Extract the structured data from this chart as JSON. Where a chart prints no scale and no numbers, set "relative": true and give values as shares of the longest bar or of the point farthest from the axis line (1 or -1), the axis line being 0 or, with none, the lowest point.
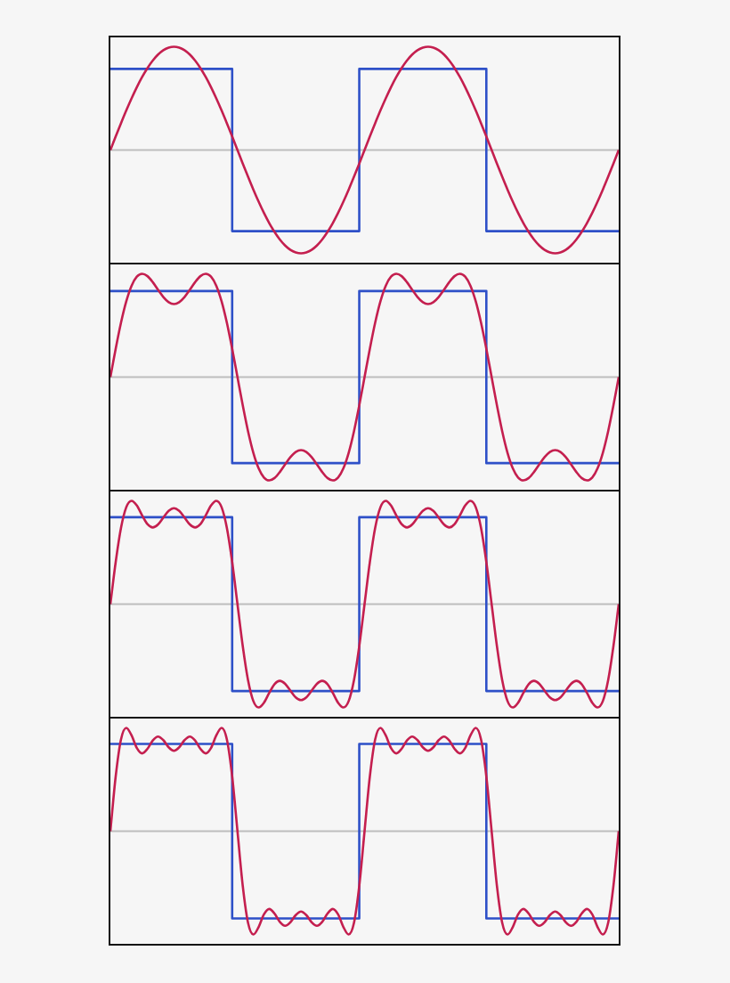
{
  "chart_data": [
    {
      "type": "line",
      "relative": true,
      "categories": [
        null,
        null,
        null,
        null,
        null,
        null,
        null,
        null,
        null,
        null,
        null,
        null,
        null,
        null,
        null,
        null,
        null,
        null,
        null,
        null,
        null,
        null,
        null,
        null,
        null,
        null,
        null,
        null,
        null,
        null,
        null,
        null,
        null,
        null,
        null,
        null,
        null,
        null,
        null,
        null,
        null,
        null,
        null,
        null,
        null,
        null,
        null,
        null,
        null,
        null,
        null,
        null,
        null,
        null,
        null,
        null,
        null,
        null,
        null,
        null,
        null,
        null,
        null,
        null,
        null,
        null,
        null,
        null,
        null,
        null,
        null,
        null,
        null,
        null,
        null,
        null,
        null,
        null,
        null,
        null,
        null,
        null,
        null,
        null,
        null,
        null,
        null,
        null,
        null,
        null,
        null,
        null,
        null,
        null,
        null,
        null,
        null
      ],
      "ref_lines": [
        {
          "axis": "y",
          "value": 0,
          "color": "#bdbdbd"
        }
      ],
      "series": [
        {
          "type": "step",
          "color": "#2e50c8",
          "values": [
            0.785,
            0.785,
            0.785,
            0.785,
            0.785,
            0.785,
            0.785,
            0.785,
            0.785,
            0.785,
            0.785,
            0.785,
            0.785,
            0.785,
            0.785,
            0.785,
            0.785,
            0.785,
            0.785,
            0.785,
            0.785,
            0.785,
            0.785,
            0.785,
            -0.785,
            -0.785,
            -0.785,
            -0.785,
            -0.785,
            -0.785,
            -0.785,
            -0.785,
            -0.785,
            -0.785,
            -0.785,
            -0.785,
            -0.785,
            -0.785,
            -0.785,
            -0.785,
            -0.785,
            -0.785,
            -0.785,
            -0.785,
            -0.785,
            -0.785,
            -0.785,
            -0.785,
            0.785,
            0.785,
            0.785,
            0.785,
            0.785,
            0.785,
            0.785,
            0.785,
            0.785,
            0.785,
            0.785,
            0.785,
            0.785,
            0.785,
            0.785,
            0.785,
            0.785,
            0.785,
            0.785,
            0.785,
            0.785,
            0.785,
            0.785,
            0.785,
            -0.785,
            -0.785,
            -0.785,
            -0.785,
            -0.785,
            -0.785,
            -0.785,
            -0.785,
            -0.785,
            -0.785,
            -0.785,
            -0.785,
            -0.785,
            -0.785,
            -0.785,
            -0.785,
            -0.785,
            -0.785,
            -0.785,
            -0.785,
            -0.785,
            -0.785,
            -0.785,
            -0.785,
            -0.785
          ]
        },
        {
          "type": "line",
          "color": "#c41f4f",
          "values": [
            0,
            0.131,
            0.259,
            0.383,
            0.5,
            0.609,
            0.707,
            0.793,
            0.866,
            0.924,
            0.966,
            0.991,
            1,
            0.991,
            0.966,
            0.924,
            0.866,
            0.793,
            0.707,
            0.609,
            0.5,
            0.383,
            0.259,
            0.131,
            0,
            -0.131,
            -0.259,
            -0.383,
            -0.5,
            -0.609,
            -0.707,
            -0.793,
            -0.866,
            -0.924,
            -0.966,
            -0.991,
            -1,
            -0.991,
            -0.966,
            -0.924,
            -0.866,
            -0.793,
            -0.707,
            -0.609,
            -0.5,
            -0.383,
            -0.259,
            -0.131,
            0,
            0.131,
            0.259,
            0.383,
            0.5,
            0.609,
            0.707,
            0.793,
            0.866,
            0.924,
            0.966,
            0.991,
            1,
            0.991,
            0.966,
            0.924,
            0.866,
            0.793,
            0.707,
            0.609,
            0.5,
            0.383,
            0.259,
            0.131,
            0,
            -0.131,
            -0.259,
            -0.383,
            -0.5,
            -0.609,
            -0.707,
            -0.793,
            -0.866,
            -0.924,
            -0.966,
            -0.991,
            -1,
            -0.991,
            -0.966,
            -0.924,
            -0.866,
            -0.793,
            -0.707,
            -0.609,
            -0.5,
            -0.383,
            -0.259,
            -0.131,
            0
          ]
        }
      ]
    },
    {
      "type": "line",
      "relative": true,
      "categories": [
        null,
        null,
        null,
        null,
        null,
        null,
        null,
        null,
        null,
        null,
        null,
        null,
        null,
        null,
        null,
        null,
        null,
        null,
        null,
        null,
        null,
        null,
        null,
        null,
        null,
        null,
        null,
        null,
        null,
        null,
        null,
        null,
        null,
        null,
        null,
        null,
        null,
        null,
        null,
        null,
        null,
        null,
        null,
        null,
        null,
        null,
        null,
        null,
        null,
        null,
        null,
        null,
        null,
        null,
        null,
        null,
        null,
        null,
        null,
        null,
        null,
        null,
        null,
        null,
        null,
        null,
        null,
        null,
        null,
        null,
        null,
        null,
        null,
        null,
        null,
        null,
        null,
        null,
        null,
        null,
        null,
        null,
        null,
        null,
        null,
        null,
        null,
        null,
        null,
        null,
        null,
        null,
        null,
        null,
        null,
        null,
        null
      ],
      "ref_lines": [
        {
          "axis": "y",
          "value": 0,
          "color": "#bdbdbd"
        }
      ],
      "series": [
        {
          "type": "step",
          "color": "#2e50c8",
          "values": [
            0.833,
            0.833,
            0.833,
            0.833,
            0.833,
            0.833,
            0.833,
            0.833,
            0.833,
            0.833,
            0.833,
            0.833,
            0.833,
            0.833,
            0.833,
            0.833,
            0.833,
            0.833,
            0.833,
            0.833,
            0.833,
            0.833,
            0.833,
            0.833,
            -0.833,
            -0.833,
            -0.833,
            -0.833,
            -0.833,
            -0.833,
            -0.833,
            -0.833,
            -0.833,
            -0.833,
            -0.833,
            -0.833,
            -0.833,
            -0.833,
            -0.833,
            -0.833,
            -0.833,
            -0.833,
            -0.833,
            -0.833,
            -0.833,
            -0.833,
            -0.833,
            -0.833,
            0.833,
            0.833,
            0.833,
            0.833,
            0.833,
            0.833,
            0.833,
            0.833,
            0.833,
            0.833,
            0.833,
            0.833,
            0.833,
            0.833,
            0.833,
            0.833,
            0.833,
            0.833,
            0.833,
            0.833,
            0.833,
            0.833,
            0.833,
            0.833,
            -0.833,
            -0.833,
            -0.833,
            -0.833,
            -0.833,
            -0.833,
            -0.833,
            -0.833,
            -0.833,
            -0.833,
            -0.833,
            -0.833,
            -0.833,
            -0.833,
            -0.833,
            -0.833,
            -0.833,
            -0.833,
            -0.833,
            -0.833,
            -0.833,
            -0.833,
            -0.833,
            -0.833,
            -0.833
          ]
        },
        {
          "type": "line",
          "color": "#c41f4f",
          "values": [
            0,
            0.274,
            0.525,
            0.733,
            0.884,
            0.972,
            1,
            0.977,
            0.919,
            0.845,
            0.775,
            0.725,
            0.707,
            0.725,
            0.775,
            0.845,
            0.919,
            0.977,
            1,
            0.972,
            0.884,
            0.733,
            0.525,
            0.274,
            0,
            -0.274,
            -0.525,
            -0.733,
            -0.884,
            -0.972,
            -1,
            -0.977,
            -0.919,
            -0.845,
            -0.775,
            -0.725,
            -0.707,
            -0.725,
            -0.775,
            -0.845,
            -0.919,
            -0.977,
            -1,
            -0.972,
            -0.884,
            -0.733,
            -0.525,
            -0.274,
            0,
            0.274,
            0.525,
            0.733,
            0.884,
            0.972,
            1,
            0.977,
            0.919,
            0.845,
            0.775,
            0.725,
            0.707,
            0.725,
            0.775,
            0.845,
            0.919,
            0.977,
            1,
            0.972,
            0.884,
            0.733,
            0.525,
            0.274,
            0,
            -0.274,
            -0.525,
            -0.733,
            -0.884,
            -0.972,
            -1,
            -0.977,
            -0.919,
            -0.845,
            -0.775,
            -0.725,
            -0.707,
            -0.725,
            -0.775,
            -0.845,
            -0.919,
            -0.977,
            -1,
            -0.972,
            -0.884,
            -0.733,
            -0.525,
            -0.274,
            0
          ]
        }
      ]
    },
    {
      "type": "line",
      "relative": true,
      "categories": [
        null,
        null,
        null,
        null,
        null,
        null,
        null,
        null,
        null,
        null,
        null,
        null,
        null,
        null,
        null,
        null,
        null,
        null,
        null,
        null,
        null,
        null,
        null,
        null,
        null,
        null,
        null,
        null,
        null,
        null,
        null,
        null,
        null,
        null,
        null,
        null,
        null,
        null,
        null,
        null,
        null,
        null,
        null,
        null,
        null,
        null,
        null,
        null,
        null,
        null,
        null,
        null,
        null,
        null,
        null,
        null,
        null,
        null,
        null,
        null,
        null,
        null,
        null,
        null,
        null,
        null,
        null,
        null,
        null,
        null,
        null,
        null,
        null,
        null,
        null,
        null,
        null,
        null,
        null,
        null,
        null,
        null,
        null,
        null,
        null,
        null,
        null,
        null,
        null,
        null,
        null,
        null,
        null,
        null,
        null,
        null,
        null
      ],
      "ref_lines": [
        {
          "axis": "y",
          "value": 0,
          "color": "#bdbdbd"
        }
      ],
      "series": [
        {
          "type": "step",
          "color": "#2e50c8",
          "values": [
            0.841,
            0.841,
            0.841,
            0.841,
            0.841,
            0.841,
            0.841,
            0.841,
            0.841,
            0.841,
            0.841,
            0.841,
            0.841,
            0.841,
            0.841,
            0.841,
            0.841,
            0.841,
            0.841,
            0.841,
            0.841,
            0.841,
            0.841,
            0.841,
            -0.841,
            -0.841,
            -0.841,
            -0.841,
            -0.841,
            -0.841,
            -0.841,
            -0.841,
            -0.841,
            -0.841,
            -0.841,
            -0.841,
            -0.841,
            -0.841,
            -0.841,
            -0.841,
            -0.841,
            -0.841,
            -0.841,
            -0.841,
            -0.841,
            -0.841,
            -0.841,
            -0.841,
            0.841,
            0.841,
            0.841,
            0.841,
            0.841,
            0.841,
            0.841,
            0.841,
            0.841,
            0.841,
            0.841,
            0.841,
            0.841,
            0.841,
            0.841,
            0.841,
            0.841,
            0.841,
            0.841,
            0.841,
            0.841,
            0.841,
            0.841,
            0.841,
            -0.841,
            -0.841,
            -0.841,
            -0.841,
            -0.841,
            -0.841,
            -0.841,
            -0.841,
            -0.841,
            -0.841,
            -0.841,
            -0.841,
            -0.841,
            -0.841,
            -0.841,
            -0.841,
            -0.841,
            -0.841,
            -0.841,
            -0.841,
            -0.841,
            -0.841,
            -0.841,
            -0.841,
            -0.841
          ]
        },
        {
          "type": "line",
          "color": "#c41f4f",
          "values": [
            0,
            0.407,
            0.737,
            0.938,
            1,
            0.954,
            0.859,
            0.774,
            0.742,
            0.771,
            0.838,
            0.902,
            0.929,
            0.902,
            0.838,
            0.771,
            0.742,
            0.774,
            0.859,
            0.954,
            1,
            0.938,
            0.737,
            0.407,
            0,
            -0.407,
            -0.737,
            -0.938,
            -1,
            -0.954,
            -0.859,
            -0.774,
            -0.742,
            -0.771,
            -0.838,
            -0.902,
            -0.929,
            -0.902,
            -0.838,
            -0.771,
            -0.742,
            -0.774,
            -0.859,
            -0.954,
            -1,
            -0.938,
            -0.737,
            -0.407,
            0,
            0.407,
            0.737,
            0.938,
            1,
            0.954,
            0.859,
            0.774,
            0.742,
            0.771,
            0.838,
            0.902,
            0.929,
            0.902,
            0.838,
            0.771,
            0.742,
            0.774,
            0.859,
            0.954,
            1,
            0.938,
            0.737,
            0.407,
            0,
            -0.407,
            -0.737,
            -0.938,
            -1,
            -0.954,
            -0.859,
            -0.774,
            -0.742,
            -0.771,
            -0.838,
            -0.902,
            -0.929,
            -0.902,
            -0.838,
            -0.771,
            -0.742,
            -0.774,
            -0.859,
            -0.954,
            -1,
            -0.938,
            -0.737,
            -0.407,
            0
          ]
        }
      ]
    },
    {
      "type": "line",
      "relative": true,
      "categories": [
        null,
        null,
        null,
        null,
        null,
        null,
        null,
        null,
        null,
        null,
        null,
        null,
        null,
        null,
        null,
        null,
        null,
        null,
        null,
        null,
        null,
        null,
        null,
        null,
        null,
        null,
        null,
        null,
        null,
        null,
        null,
        null,
        null,
        null,
        null,
        null,
        null,
        null,
        null,
        null,
        null,
        null,
        null,
        null,
        null,
        null,
        null,
        null,
        null,
        null,
        null,
        null,
        null,
        null,
        null,
        null,
        null,
        null,
        null,
        null,
        null,
        null,
        null,
        null,
        null,
        null,
        null,
        null,
        null,
        null,
        null,
        null,
        null,
        null,
        null,
        null,
        null,
        null,
        null,
        null,
        null,
        null,
        null,
        null,
        null,
        null,
        null,
        null,
        null,
        null,
        null,
        null,
        null,
        null,
        null,
        null,
        null
      ],
      "ref_lines": [
        {
          "axis": "y",
          "value": 0,
          "color": "#bdbdbd"
        }
      ],
      "series": [
        {
          "type": "step",
          "color": "#2e50c8",
          "values": [
            0.844,
            0.844,
            0.844,
            0.844,
            0.844,
            0.844,
            0.844,
            0.844,
            0.844,
            0.844,
            0.844,
            0.844,
            0.844,
            0.844,
            0.844,
            0.844,
            0.844,
            0.844,
            0.844,
            0.844,
            0.844,
            0.844,
            0.844,
            0.844,
            -0.844,
            -0.844,
            -0.844,
            -0.844,
            -0.844,
            -0.844,
            -0.844,
            -0.844,
            -0.844,
            -0.844,
            -0.844,
            -0.844,
            -0.844,
            -0.844,
            -0.844,
            -0.844,
            -0.844,
            -0.844,
            -0.844,
            -0.844,
            -0.844,
            -0.844,
            -0.844,
            -0.844,
            0.844,
            0.844,
            0.844,
            0.844,
            0.844,
            0.844,
            0.844,
            0.844,
            0.844,
            0.844,
            0.844,
            0.844,
            0.844,
            0.844,
            0.844,
            0.844,
            0.844,
            0.844,
            0.844,
            0.844,
            0.844,
            0.844,
            0.844,
            0.844,
            -0.844,
            -0.844,
            -0.844,
            -0.844,
            -0.844,
            -0.844,
            -0.844,
            -0.844,
            -0.844,
            -0.844,
            -0.844,
            -0.844,
            -0.844,
            -0.844,
            -0.844,
            -0.844,
            -0.844,
            -0.844,
            -0.844,
            -0.844,
            -0.844,
            -0.844,
            -0.844,
            -0.844,
            -0.844
          ]
        },
        {
          "type": "line",
          "color": "#c41f4f",
          "values": [
            0,
            0.53,
            0.888,
            1,
            0.927,
            0.805,
            0.753,
            0.797,
            0.878,
            0.916,
            0.881,
            0.812,
            0.778,
            0.812,
            0.881,
            0.916,
            0.878,
            0.797,
            0.753,
            0.805,
            0.927,
            1,
            0.888,
            0.53,
            0,
            -0.53,
            -0.888,
            -1,
            -0.927,
            -0.805,
            -0.753,
            -0.797,
            -0.878,
            -0.916,
            -0.881,
            -0.812,
            -0.778,
            -0.812,
            -0.881,
            -0.916,
            -0.878,
            -0.797,
            -0.753,
            -0.805,
            -0.927,
            -1,
            -0.888,
            -0.53,
            0,
            0.53,
            0.888,
            1,
            0.927,
            0.805,
            0.753,
            0.797,
            0.878,
            0.916,
            0.881,
            0.812,
            0.778,
            0.812,
            0.881,
            0.916,
            0.878,
            0.797,
            0.753,
            0.805,
            0.927,
            1,
            0.888,
            0.53,
            0,
            -0.53,
            -0.888,
            -1,
            -0.927,
            -0.805,
            -0.753,
            -0.797,
            -0.878,
            -0.916,
            -0.881,
            -0.812,
            -0.778,
            -0.812,
            -0.881,
            -0.916,
            -0.878,
            -0.797,
            -0.753,
            -0.805,
            -0.927,
            -1,
            -0.888,
            -0.53,
            0
          ]
        }
      ]
    }
  ]
}
